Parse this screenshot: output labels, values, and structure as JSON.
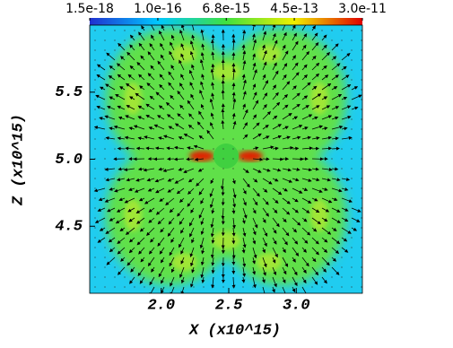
{
  "chart_data": {
    "type": "image",
    "xlabel": "X (x10^15)",
    "ylabel": "Z (x10^15)",
    "xlim": [
      1.47,
      3.49
    ],
    "ylim": [
      4.0,
      6.0
    ],
    "xticks": [
      {
        "value": 2.0,
        "label": "2.0"
      },
      2.5,
      {
        "value": 3.0,
        "label": "3.0"
      }
    ],
    "yticks": [
      4.5,
      {
        "value": 5.0,
        "label": "5.0"
      },
      5.5
    ],
    "colorbar": {
      "scale": "log",
      "lim": [
        1.5e-18,
        3e-11
      ],
      "ticks": [
        {
          "value": 1.5e-18,
          "label": "1.5e-18"
        },
        {
          "value": 1e-16,
          "label": "1.0e-16"
        },
        {
          "value": 6.8e-15,
          "label": "6.8e-15"
        },
        {
          "value": 4.5e-13,
          "label": "4.5e-13"
        },
        {
          "value": 3e-11,
          "label": "3.0e-11"
        }
      ]
    }
  }
}
